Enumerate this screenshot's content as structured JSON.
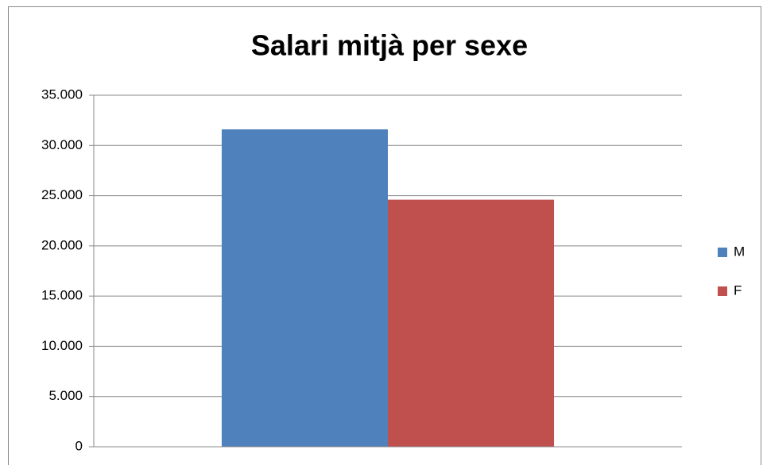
{
  "chart_data": {
    "type": "bar",
    "title": "Salari mitjà per sexe",
    "categories": [
      null
    ],
    "series": [
      {
        "name": "M",
        "color": "#4f81bd",
        "values": [
          31600
        ]
      },
      {
        "name": "F",
        "color": "#c0504d",
        "values": [
          24600
        ]
      }
    ],
    "ylim": [
      0,
      35000
    ],
    "yticks": [
      0,
      {
        "value": 5000,
        "label": "5.000"
      },
      {
        "value": 10000,
        "label": "10.000"
      },
      {
        "value": 15000,
        "label": "15.000"
      },
      {
        "value": 20000,
        "label": "20.000"
      },
      {
        "value": 25000,
        "label": "25.000"
      },
      {
        "value": 30000,
        "label": "30.000"
      },
      {
        "value": 35000,
        "label": "35.000"
      }
    ],
    "grid": true,
    "legend": "right"
  }
}
